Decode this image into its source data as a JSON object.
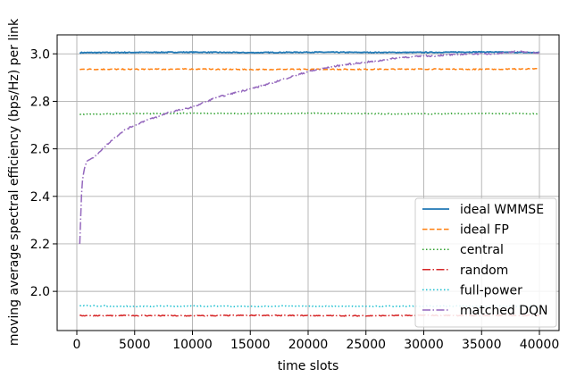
{
  "chart_data": {
    "type": "line",
    "title": "",
    "xlabel": "time slots",
    "ylabel": "moving average spectral efficiency (bps/Hz) per link",
    "xlim": [
      -1700,
      41700
    ],
    "ylim": [
      1.835,
      3.08
    ],
    "xticks": [
      0,
      5000,
      10000,
      15000,
      20000,
      25000,
      30000,
      35000,
      40000
    ],
    "xtick_labels": [
      "0",
      "5000",
      "10000",
      "15000",
      "20000",
      "25000",
      "30000",
      "35000",
      "40000"
    ],
    "yticks": [
      2.0,
      2.2,
      2.4,
      2.6,
      2.8,
      3.0
    ],
    "ytick_labels": [
      "2.0",
      "2.2",
      "2.4",
      "2.6",
      "2.8",
      "3.0"
    ],
    "grid": true,
    "legend_position": "lower right",
    "series": [
      {
        "name": "ideal WMMSE",
        "color": "#1f77b4",
        "dash": "solid",
        "x": [
          250,
          5000,
          10000,
          15000,
          20000,
          25000,
          30000,
          35000,
          40000
        ],
        "values": [
          3.005,
          3.006,
          3.007,
          3.005,
          3.007,
          3.006,
          3.006,
          3.008,
          3.005
        ]
      },
      {
        "name": "ideal FP",
        "color": "#ff7f0e",
        "dash": "dashed",
        "x": [
          250,
          5000,
          10000,
          15000,
          20000,
          25000,
          30000,
          35000,
          40000
        ],
        "values": [
          2.935,
          2.935,
          2.936,
          2.934,
          2.935,
          2.935,
          2.936,
          2.935,
          2.937
        ]
      },
      {
        "name": "central",
        "color": "#2ca02c",
        "dash": "dotted",
        "x": [
          250,
          5000,
          10000,
          15000,
          20000,
          25000,
          30000,
          35000,
          40000
        ],
        "values": [
          2.745,
          2.748,
          2.75,
          2.748,
          2.75,
          2.748,
          2.747,
          2.749,
          2.748
        ]
      },
      {
        "name": "random",
        "color": "#d62728",
        "dash": "dashdot",
        "x": [
          250,
          5000,
          10000,
          15000,
          20000,
          25000,
          30000,
          35000,
          40000
        ],
        "values": [
          1.898,
          1.898,
          1.897,
          1.899,
          1.898,
          1.897,
          1.899,
          1.898,
          1.899
        ]
      },
      {
        "name": "full-power",
        "color": "#17becf",
        "dash": "dotted",
        "x": [
          250,
          5000,
          10000,
          15000,
          20000,
          25000,
          30000,
          35000,
          40000
        ],
        "values": [
          1.94,
          1.937,
          1.938,
          1.937,
          1.938,
          1.937,
          1.938,
          1.937,
          1.938
        ]
      },
      {
        "name": "matched DQN",
        "color": "#9467bd",
        "dash": "dashdot",
        "x": [
          250,
          400,
          500,
          700,
          1000,
          1500,
          2000,
          3000,
          4000,
          5000,
          6000,
          7000,
          8000,
          10000,
          12000,
          14000,
          16000,
          18000,
          20000,
          22000,
          24000,
          26000,
          28000,
          30000,
          32000,
          34000,
          36000,
          38000,
          40000
        ],
        "values": [
          2.2,
          2.4,
          2.47,
          2.53,
          2.555,
          2.565,
          2.59,
          2.635,
          2.675,
          2.7,
          2.72,
          2.735,
          2.755,
          2.775,
          2.815,
          2.84,
          2.865,
          2.895,
          2.925,
          2.945,
          2.96,
          2.97,
          2.985,
          2.99,
          2.995,
          3.0,
          3.0,
          3.01,
          3.005
        ]
      }
    ]
  }
}
